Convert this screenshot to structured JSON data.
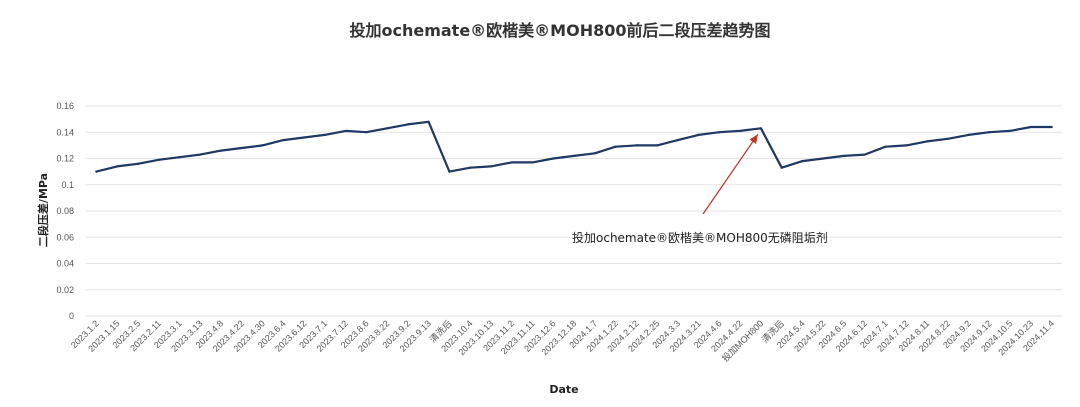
{
  "chart_data": {
    "type": "line",
    "title": "投加ochemate®欧楷美®MOH800前后二段压差趋势图",
    "xlabel": "Date",
    "ylabel": "二段压差/MPa",
    "ylim": [
      0,
      0.16
    ],
    "yticks": [
      "0",
      "0.02",
      "0.04",
      "0.06",
      "0.08",
      "0.1",
      "0.12",
      "0.14",
      "0.16"
    ],
    "grid": true,
    "line_color": "#1f3864",
    "annotation": {
      "text": "投加ochemate®欧楷美®MOH800无磷阻垢剂",
      "arrow_color": "#c0392b",
      "points_to": "投加MOH800"
    },
    "categories": [
      "2023.1.2",
      "2023.1.15",
      "2023.2.5",
      "2023.2.11",
      "2023.3.1",
      "2023.3.13",
      "2023.4.8",
      "2023.4.22",
      "2023.4.30",
      "2023.6.4",
      "2023.6.12",
      "2023.7.1",
      "2023.7.12",
      "2023.8.6",
      "2023.8.22",
      "2023.9.2",
      "2023.9.13",
      "清洗后",
      "2023.10.4",
      "2023.10.13",
      "2023.11.2",
      "2023.11.11",
      "2023.12.6",
      "2023.12.18",
      "2024.1.7",
      "2024.1.22",
      "2024.2.12",
      "2024.2.25",
      "2024.3.3",
      "2024.3.21",
      "2024.4.6",
      "2024.4.22",
      "投加MOH800",
      "清洗后",
      "2024.5.4",
      "2024.5.22",
      "2024.6.5",
      "2024.6.12",
      "2024.7.1",
      "2024.7.12",
      "2024.8.11",
      "2024.8.22",
      "2024.9.2",
      "2024.9.12",
      "2024.10.5",
      "2024.10.23",
      "2024.11.4"
    ],
    "highlight_categories": [
      "清洗后",
      "投加MOH800"
    ],
    "series": [
      {
        "values": [
          0.11,
          0.114,
          0.116,
          0.119,
          0.121,
          0.123,
          0.126,
          0.128,
          0.13,
          0.134,
          0.136,
          0.138,
          0.141,
          0.14,
          0.143,
          0.146,
          0.148,
          0.11,
          0.113,
          0.114,
          0.117,
          0.117,
          0.12,
          0.122,
          0.124,
          0.129,
          0.13,
          0.13,
          0.134,
          0.138,
          0.14,
          0.141,
          0.143,
          0.113,
          0.118,
          0.12,
          0.122,
          0.123,
          0.129,
          0.13,
          0.133,
          0.135,
          0.138,
          0.14,
          0.141,
          0.144,
          0.144
        ]
      }
    ]
  }
}
